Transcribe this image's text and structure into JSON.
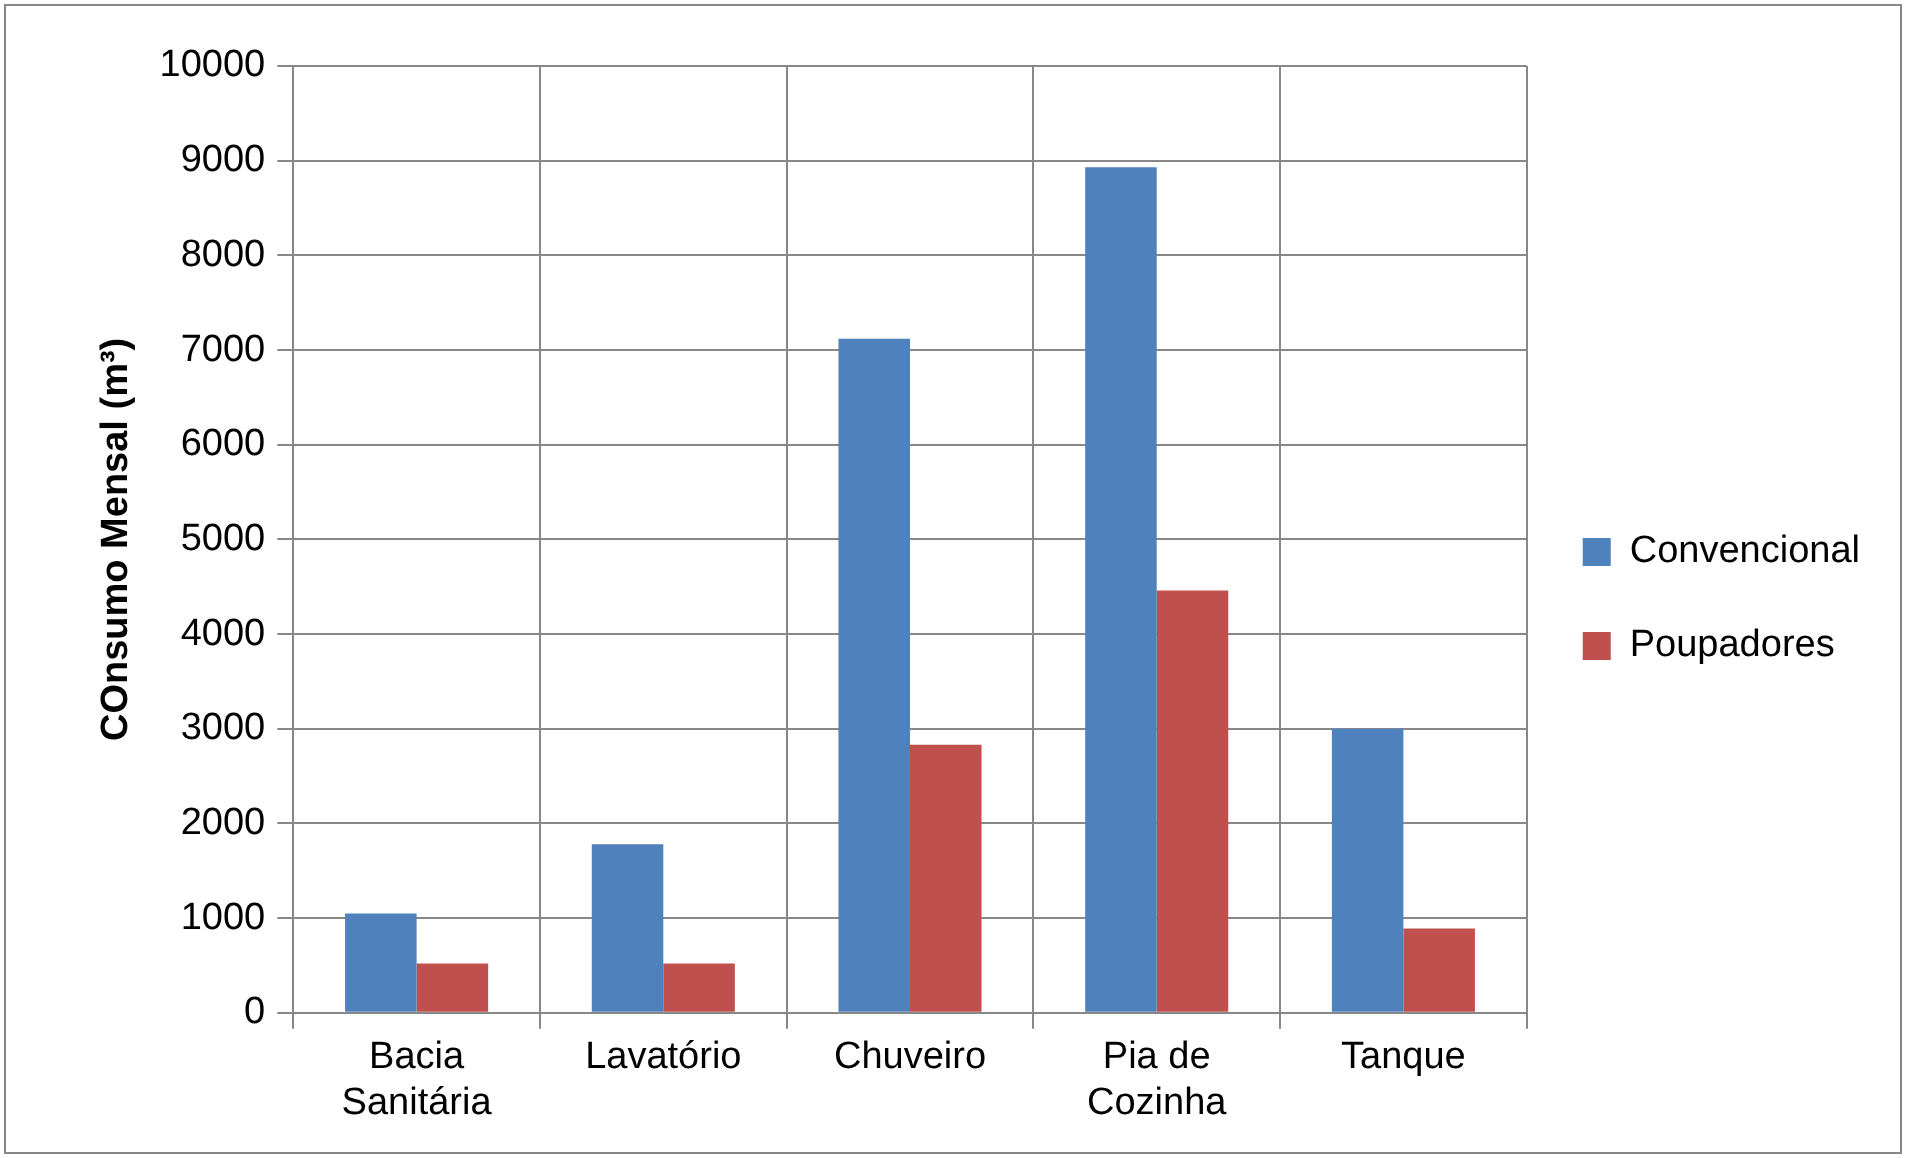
{
  "chart_data": {
    "type": "bar",
    "ylabel": "COnsumo Mensal (m³)",
    "categories": [
      "Bacia Sanitária",
      "Lavatório",
      "Chuveiro",
      "Pia de Cozinha",
      "Tanque"
    ],
    "series": [
      {
        "name": "Convencional",
        "color": "#4f81bd",
        "values": [
          1050,
          1780,
          7120,
          8930,
          3000
        ]
      },
      {
        "name": "Poupadores",
        "color": "#c0504d",
        "values": [
          520,
          520,
          2830,
          4460,
          890
        ]
      }
    ],
    "ylim": [
      0,
      10000
    ],
    "yticks": [
      0,
      1000,
      2000,
      3000,
      4000,
      5000,
      6000,
      7000,
      8000,
      9000,
      10000
    ],
    "grid": true,
    "legend": "right"
  }
}
